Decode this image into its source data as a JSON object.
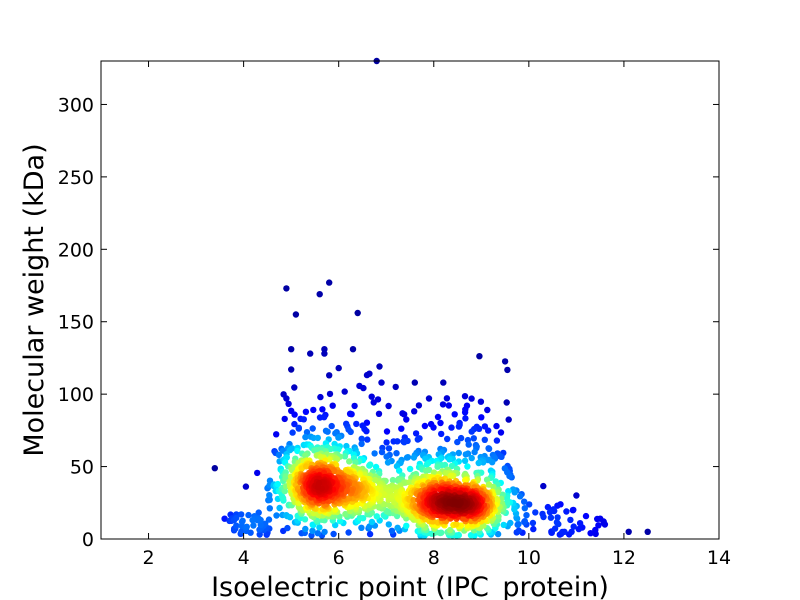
{
  "chart_data": {
    "type": "scatter",
    "xlabel": "Isoelectric point (IPC_protein)",
    "ylabel": "Molecular weight (kDa)",
    "xlim": [
      1,
      14
    ],
    "ylim": [
      0,
      330
    ],
    "xticks": [
      2,
      4,
      6,
      8,
      10,
      12,
      14
    ],
    "yticks": [
      0,
      50,
      100,
      150,
      200,
      250,
      300
    ],
    "grid": false,
    "color_encoding": "point density (jet colormap: blue = low, red = high)",
    "colormap": [
      "#00008f",
      "#0000ff",
      "#0080ff",
      "#00ffff",
      "#80ff80",
      "#ffff00",
      "#ff8000",
      "#ff0000",
      "#800000"
    ],
    "density_clusters": [
      {
        "center_x": 5.7,
        "center_y": 32,
        "spread_x": 0.55,
        "spread_y": 12
      },
      {
        "center_x": 8.6,
        "center_y": 22,
        "spread_x": 0.55,
        "spread_y": 9
      }
    ],
    "outliers": [
      {
        "x": 4.9,
        "y": 173
      },
      {
        "x": 5.8,
        "y": 177
      },
      {
        "x": 5.6,
        "y": 169
      },
      {
        "x": 5.1,
        "y": 155
      },
      {
        "x": 6.4,
        "y": 156
      },
      {
        "x": 6.8,
        "y": 330
      },
      {
        "x": 5.0,
        "y": 131
      },
      {
        "x": 5.7,
        "y": 131
      },
      {
        "x": 6.3,
        "y": 131
      },
      {
        "x": 5.4,
        "y": 128
      },
      {
        "x": 5.7,
        "y": 128
      },
      {
        "x": 6.0,
        "y": 118
      },
      {
        "x": 5.0,
        "y": 117
      },
      {
        "x": 5.8,
        "y": 113
      },
      {
        "x": 6.9,
        "y": 108
      },
      {
        "x": 7.6,
        "y": 108
      },
      {
        "x": 8.2,
        "y": 108
      },
      {
        "x": 7.2,
        "y": 105
      },
      {
        "x": 4.9,
        "y": 97
      },
      {
        "x": 7.9,
        "y": 97
      },
      {
        "x": 8.7,
        "y": 92
      },
      {
        "x": 9.0,
        "y": 84
      },
      {
        "x": 9.4,
        "y": 57
      },
      {
        "x": 9.6,
        "y": 47
      },
      {
        "x": 3.6,
        "y": 14
      },
      {
        "x": 3.8,
        "y": 6
      },
      {
        "x": 11.0,
        "y": 30
      },
      {
        "x": 11.5,
        "y": 14
      },
      {
        "x": 11.6,
        "y": 10
      },
      {
        "x": 12.1,
        "y": 5
      },
      {
        "x": 12.5,
        "y": 5
      },
      {
        "x": 10.9,
        "y": 5
      },
      {
        "x": 11.3,
        "y": 4
      },
      {
        "x": 10.4,
        "y": 22
      },
      {
        "x": 10.6,
        "y": 23
      }
    ]
  }
}
